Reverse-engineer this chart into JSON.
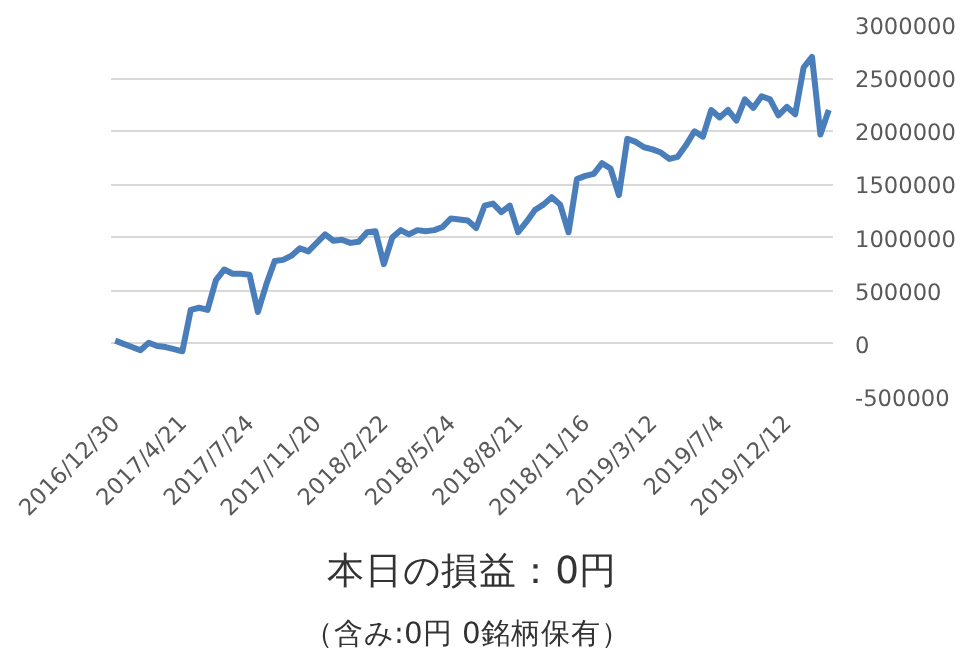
{
  "chart_data": {
    "type": "line",
    "title": "本日の損益：0円",
    "subtitle": "（含み:0円  0銘柄保有）",
    "categories": [
      "2016/12/30",
      null,
      null,
      null,
      null,
      null,
      null,
      null,
      "2017/4/21",
      null,
      null,
      null,
      null,
      null,
      null,
      null,
      "2017/7/24",
      null,
      null,
      null,
      null,
      null,
      null,
      null,
      "2017/11/20",
      null,
      null,
      null,
      null,
      null,
      null,
      null,
      "2018/2/22",
      null,
      null,
      null,
      null,
      null,
      null,
      null,
      "2018/5/24",
      null,
      null,
      null,
      null,
      null,
      null,
      null,
      "2018/8/21",
      null,
      null,
      null,
      null,
      null,
      null,
      null,
      "2018/11/16",
      null,
      null,
      null,
      null,
      null,
      null,
      null,
      "2019/3/12",
      null,
      null,
      null,
      null,
      null,
      null,
      null,
      "2019/7/4",
      null,
      null,
      null,
      null,
      null,
      null,
      null,
      "2019/12/12",
      null,
      null,
      null,
      null,
      null
    ],
    "series": [
      {
        "color": "#4a7ebb",
        "values": [
          30000,
          0,
          -30000,
          -60000,
          10000,
          -20000,
          -30000,
          -50000,
          -70000,
          320000,
          340000,
          320000,
          600000,
          700000,
          660000,
          660000,
          650000,
          300000,
          560000,
          780000,
          790000,
          830000,
          900000,
          870000,
          950000,
          1030000,
          970000,
          980000,
          950000,
          960000,
          1050000,
          1060000,
          750000,
          1000000,
          1070000,
          1030000,
          1070000,
          1060000,
          1070000,
          1100000,
          1180000,
          1170000,
          1160000,
          1090000,
          1300000,
          1320000,
          1240000,
          1300000,
          1050000,
          1150000,
          1260000,
          1310000,
          1380000,
          1310000,
          1050000,
          1550000,
          1580000,
          1600000,
          1700000,
          1650000,
          1400000,
          1930000,
          1900000,
          1850000,
          1830000,
          1800000,
          1740000,
          1760000,
          1870000,
          2000000,
          1950000,
          2200000,
          2130000,
          2200000,
          2100000,
          2300000,
          2220000,
          2330000,
          2300000,
          2150000,
          2230000,
          2160000,
          2600000,
          2700000,
          1970000,
          2200000
        ]
      }
    ],
    "ylim": [
      -500000,
      3000000
    ],
    "yticks": [
      -500000,
      0,
      500000,
      1000000,
      1500000,
      2000000,
      2500000,
      3000000
    ],
    "grid": "y",
    "line_style": "solid",
    "marker": "none"
  }
}
